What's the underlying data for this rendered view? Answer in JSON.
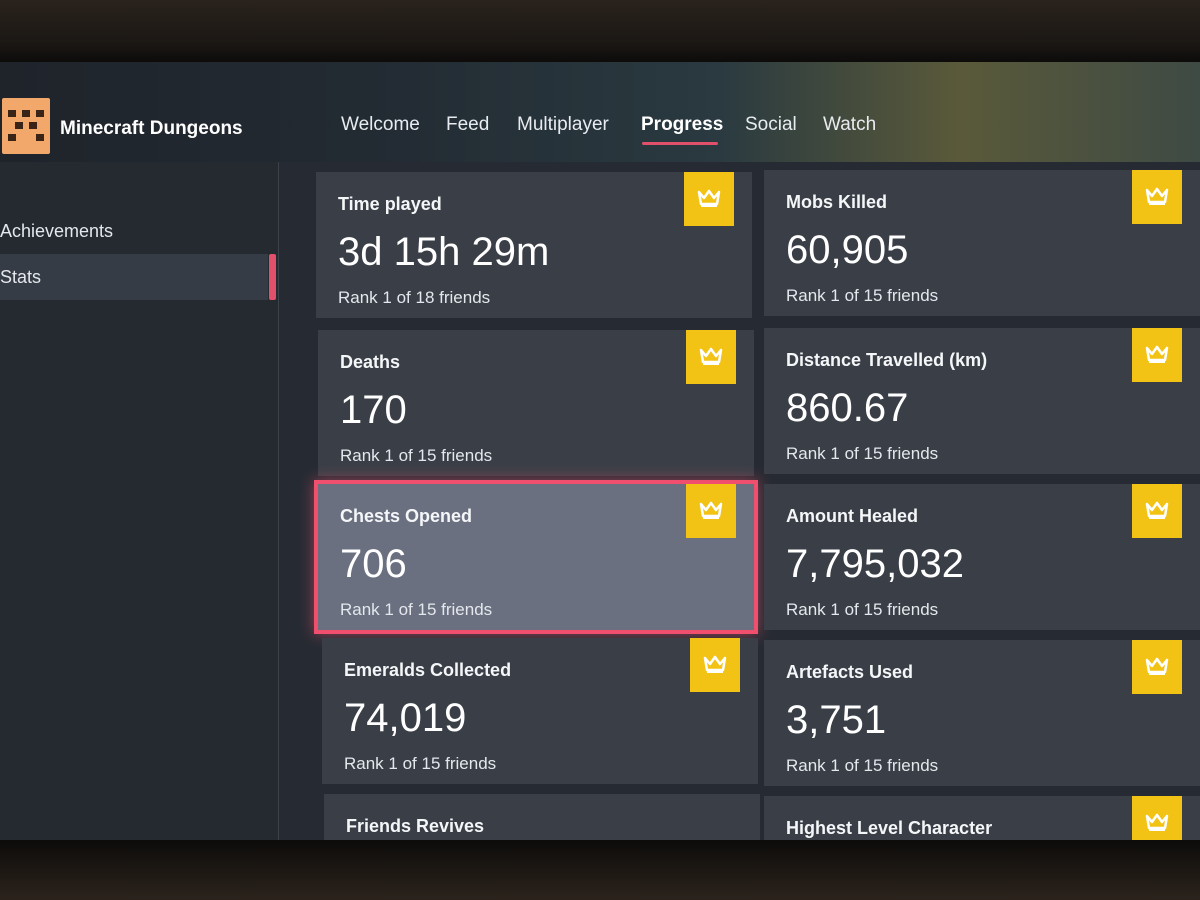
{
  "app": {
    "title": "Minecraft Dungeons",
    "logo_icon": "dungeons-logo-icon"
  },
  "nav": {
    "tabs": [
      {
        "label": "Welcome",
        "active": false
      },
      {
        "label": "Feed",
        "active": false
      },
      {
        "label": "Multiplayer",
        "active": false
      },
      {
        "label": "Progress",
        "active": true
      },
      {
        "label": "Social",
        "active": false
      },
      {
        "label": "Watch",
        "active": false
      }
    ]
  },
  "sidebar": {
    "items": [
      {
        "label": "Achievements",
        "selected": false
      },
      {
        "label": "Stats",
        "selected": true
      }
    ]
  },
  "stats": [
    {
      "title": "Time played",
      "value": "3d 15h 29m",
      "rank": "Rank 1 of 18 friends",
      "badge_icon": "crown-icon"
    },
    {
      "title": "Mobs Killed",
      "value": "60,905",
      "rank": "Rank 1 of 15 friends",
      "badge_icon": "crown-icon"
    },
    {
      "title": "Deaths",
      "value": "170",
      "rank": "Rank 1 of 15 friends",
      "badge_icon": "crown-icon"
    },
    {
      "title": "Distance Travelled (km)",
      "value": "860.67",
      "rank": "Rank 1 of 15 friends",
      "badge_icon": "crown-icon"
    },
    {
      "title": "Chests Opened",
      "value": "706",
      "rank": "Rank 1 of 15 friends",
      "badge_icon": "crown-icon",
      "focused": true
    },
    {
      "title": "Amount Healed",
      "value": "7,795,032",
      "rank": "Rank 1 of 15 friends",
      "badge_icon": "crown-icon"
    },
    {
      "title": "Emeralds Collected",
      "value": "74,019",
      "rank": "Rank 1 of 15 friends",
      "badge_icon": "crown-icon"
    },
    {
      "title": "Artefacts Used",
      "value": "3,751",
      "rank": "Rank 1 of 15 friends",
      "badge_icon": "crown-icon"
    },
    {
      "title": "Friends Revives",
      "badge_icon": "crown-icon"
    },
    {
      "title": "Highest Level Character",
      "badge_icon": "crown-icon"
    }
  ],
  "colors": {
    "accent": "#e0506a",
    "focus": "#f0506e",
    "badge": "#f2c314",
    "card": "#3a3f47",
    "card_focused": "#6a7080",
    "background": "#262b33"
  }
}
